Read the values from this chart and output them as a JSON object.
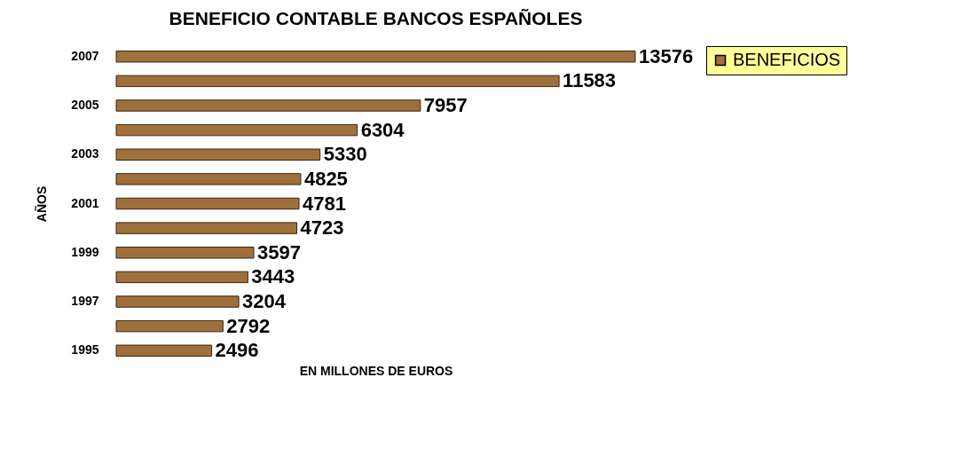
{
  "chart_data": {
    "type": "bar",
    "orientation": "horizontal",
    "title": "BENEFICIO CONTABLE BANCOS ESPAÑOLES",
    "xlabel": "EN MILLONES DE EUROS",
    "ylabel": "AÑOS",
    "categories": [
      "2007",
      null,
      "2005",
      null,
      "2003",
      null,
      "2001",
      null,
      "1999",
      null,
      "1997",
      null,
      "1995"
    ],
    "series": [
      {
        "name": "BENEFICIOS",
        "color": "#a0703c",
        "values": [
          13576,
          11583,
          7957,
          6304,
          5330,
          4825,
          4781,
          4723,
          3597,
          3443,
          3204,
          2792,
          2496
        ]
      }
    ],
    "data_labels": true,
    "legend": "right",
    "grid": false
  }
}
